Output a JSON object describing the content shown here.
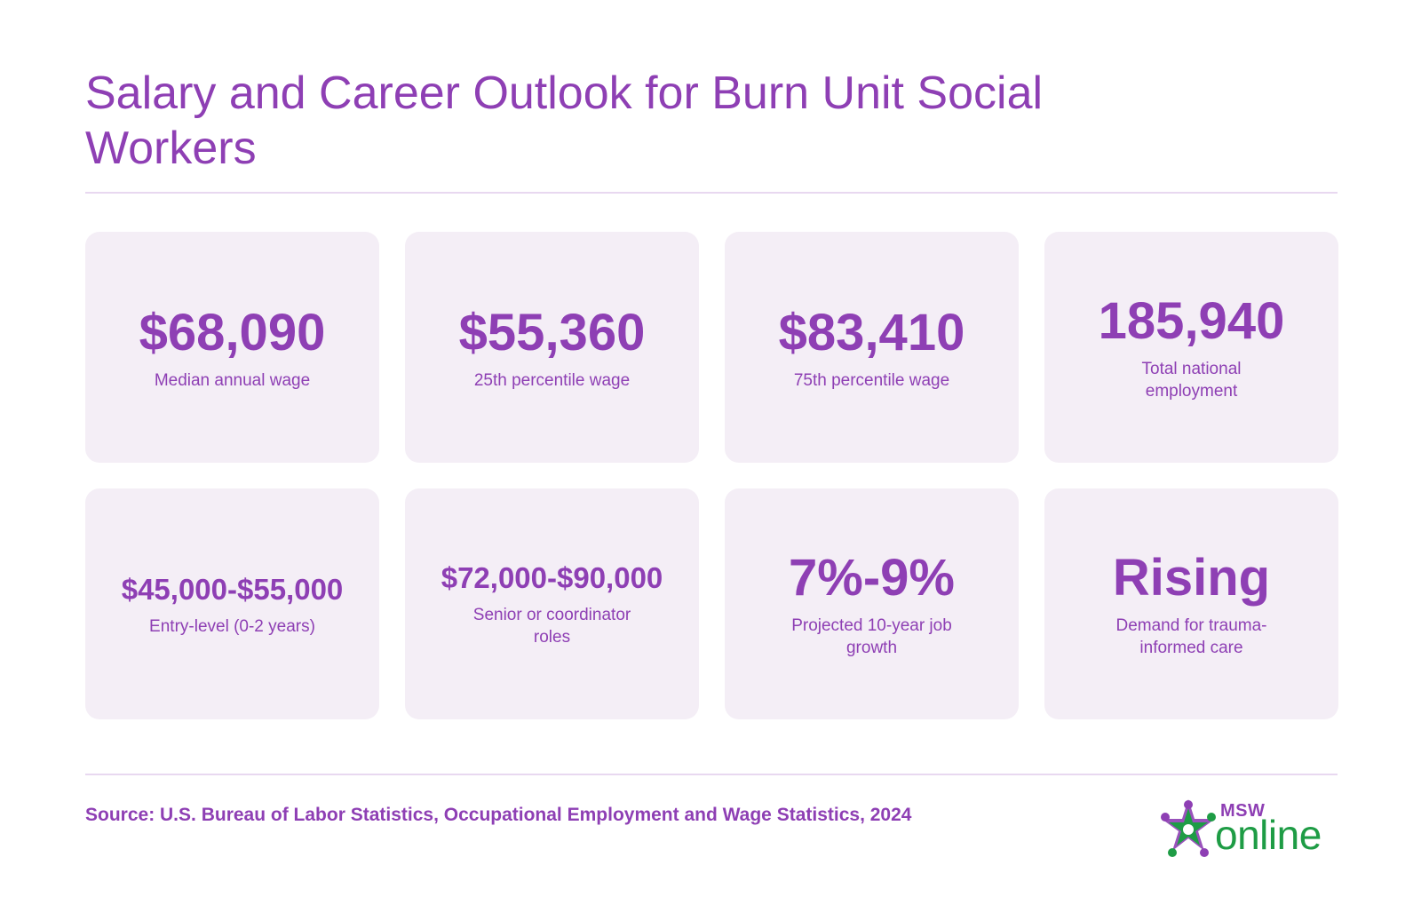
{
  "page": {
    "title": "Salary and Career Outlook for Burn Unit Social Workers"
  },
  "stats": [
    {
      "value": "$68,090",
      "label": "Median annual wage"
    },
    {
      "value": "$55,360",
      "label": "25th percentile wage"
    },
    {
      "value": "$83,410",
      "label": "75th percentile wage"
    },
    {
      "value": "185,940",
      "label": "Total national employment"
    },
    {
      "value": "$45,000-$55,000",
      "label": "Entry-level (0-2 years)"
    },
    {
      "value": "$72,000-$90,000",
      "label": "Senior or coordinator roles"
    },
    {
      "value": "7%-9%",
      "label": "Projected 10-year job growth"
    },
    {
      "value": "Rising",
      "label": "Demand for trauma-informed care"
    }
  ],
  "footer": {
    "source": "Source: U.S. Bureau of Labor Statistics, Occupational Employment and Wage Statistics, 2024"
  },
  "logo": {
    "top_text": "MSW",
    "bottom_text": "online"
  },
  "colors": {
    "accent": "#8e3fb4",
    "card_background": "#f4eef6",
    "divider": "#e8d8f0",
    "logo_green": "#1e9c45"
  }
}
